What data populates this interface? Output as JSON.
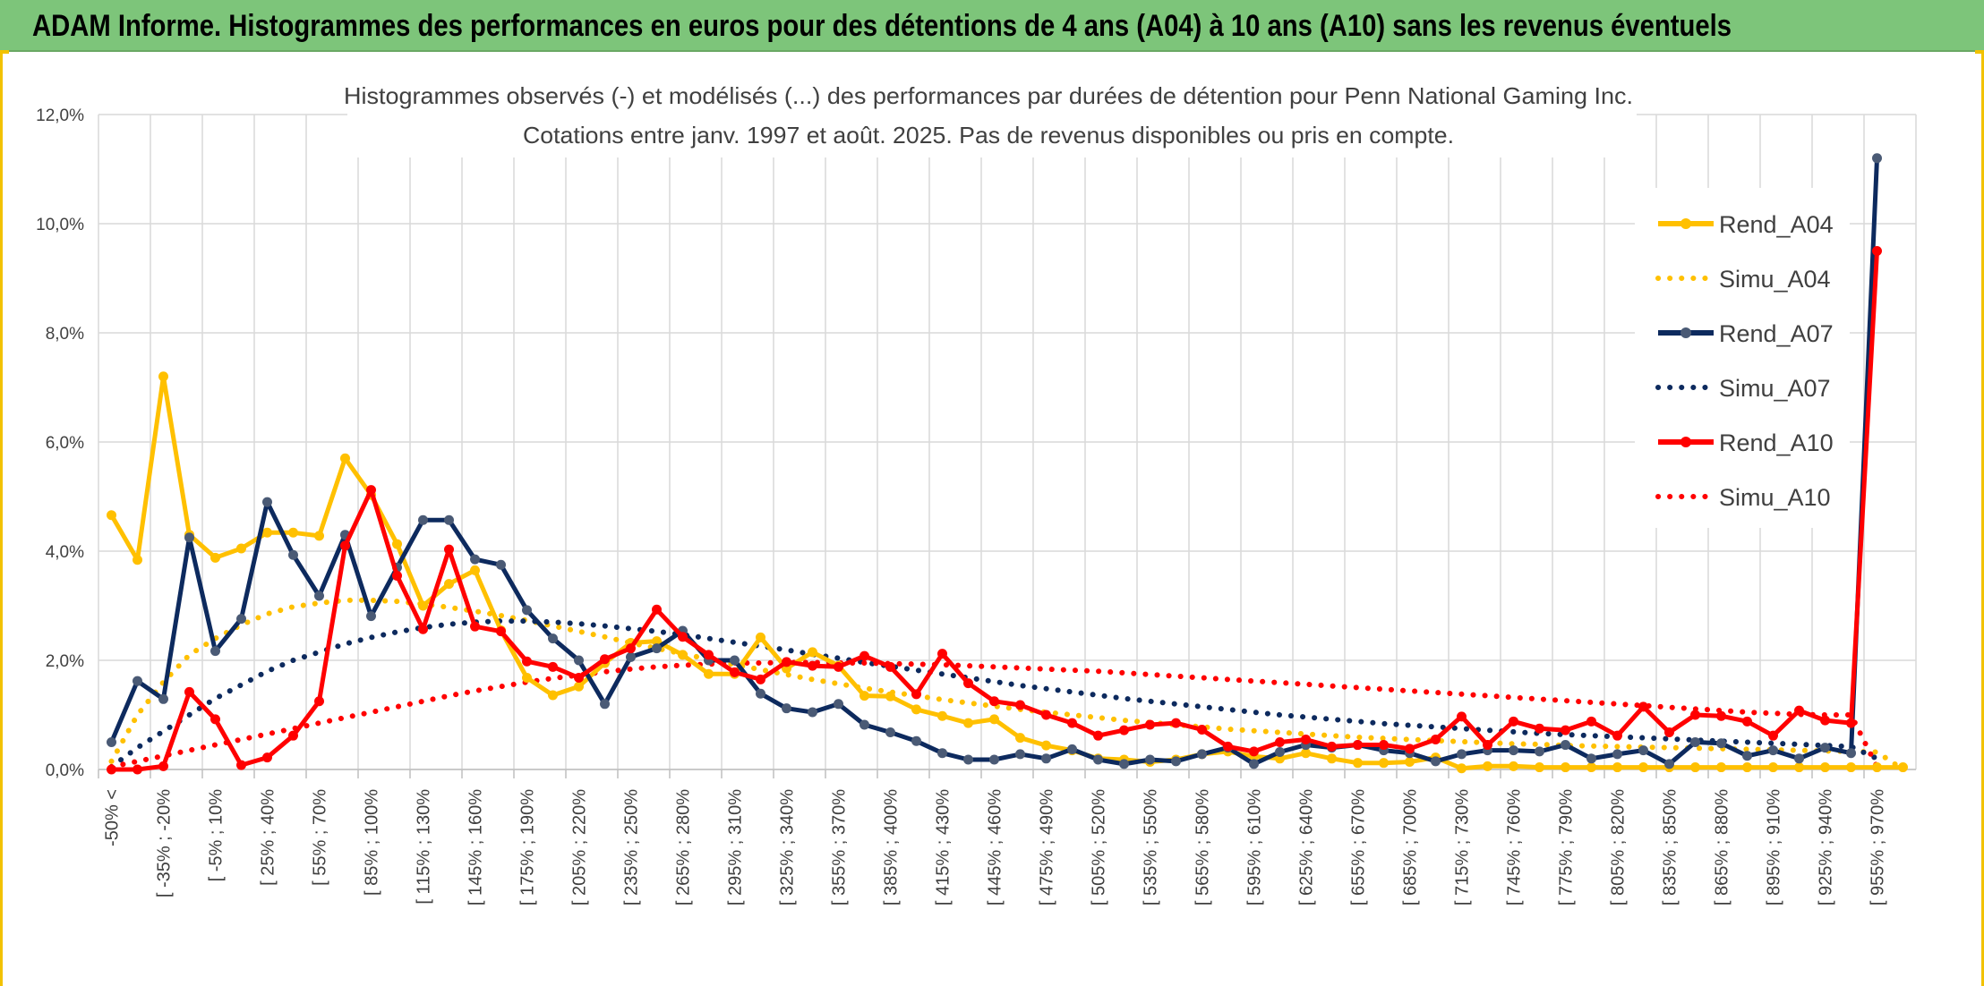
{
  "header": {
    "title": "ADAM Informe. Histogrammes des performances en euros pour des détentions de 4 ans (A04) à 10 ans (A10) sans les revenus éventuels"
  },
  "colors": {
    "header_bg": "#7dc57a",
    "accent": "#f2c200",
    "A04": "#ffc000",
    "A07": "#0d2a5e",
    "A10": "#ff0000"
  },
  "chart_data": {
    "type": "line",
    "title_line1": "Histogrammes observés (-) et modélisés (...) des performances par durées de détention pour Penn National Gaming Inc.",
    "title_line2": "Cotations entre janv. 1997 et août. 2025. Pas de revenus disponibles ou pris en compte.",
    "xlabel": "",
    "ylabel": "",
    "ylim": [
      0,
      12
    ],
    "y_ticks": [
      "0,0%",
      "2,0%",
      "4,0%",
      "6,0%",
      "8,0%",
      "10,0%",
      "12,0%"
    ],
    "grid": true,
    "legend_position": "right",
    "x_tick_labels": [
      "-50% <",
      "[ -35% ; -20%",
      "[ -5% ; 10%",
      "[ 25% ; 40%",
      "[ 55% ; 70%",
      "[ 85% ; 100%",
      "[ 115% ; 130%",
      "[ 145% ; 160%",
      "[ 175% ; 190%",
      "[ 205% ; 220%",
      "[ 235% ; 250%",
      "[ 265% ; 280%",
      "[ 295% ; 310%",
      "[ 325% ; 340%",
      "[ 355% ; 370%",
      "[ 385% ; 400%",
      "[ 415% ; 430%",
      "[ 445% ; 460%",
      "[ 475% ; 490%",
      "[ 505% ; 520%",
      "[ 535% ; 550%",
      "[ 565% ; 580%",
      "[ 595% ; 610%",
      "[ 625% ; 640%",
      "[ 655% ; 670%",
      "[ 685% ; 700%",
      "[ 715% ; 730%",
      "[ 745% ; 760%",
      "[ 775% ; 790%",
      "[ 805% ; 820%",
      "[ 835% ; 850%",
      "[ 865% ; 880%",
      "[ 895% ; 910%",
      "[ 925% ; 940%",
      "[ 955% ; 970%"
    ],
    "series": [
      {
        "name": "Rend_A04",
        "style": "solid",
        "color": "#ffc000",
        "values": [
          4.66,
          3.84,
          7.2,
          4.3,
          3.88,
          4.05,
          4.34,
          4.34,
          4.28,
          5.7,
          5.03,
          4.13,
          3.0,
          3.4,
          3.65,
          2.55,
          1.68,
          1.36,
          1.52,
          1.95,
          2.32,
          2.35,
          2.1,
          1.75,
          1.75,
          2.42,
          1.85,
          2.15,
          1.9,
          1.35,
          1.34,
          1.1,
          0.98,
          0.85,
          0.92,
          0.58,
          0.44,
          0.35,
          0.2,
          0.18,
          0.14,
          0.18,
          0.28,
          0.33,
          0.24,
          0.2,
          0.3,
          0.2,
          0.12,
          0.12,
          0.14,
          0.22,
          0.02,
          0.06,
          0.06,
          0.04,
          0.04,
          0.04,
          0.04,
          0.04,
          0.04,
          0.04,
          0.04,
          0.04,
          0.04,
          0.04,
          0.04,
          0.04,
          0.04,
          0.04
        ]
      },
      {
        "name": "Simu_A04",
        "style": "dotted",
        "color": "#ffc000",
        "values": [
          0.15,
          1.0,
          1.6,
          2.1,
          2.4,
          2.65,
          2.85,
          2.98,
          3.05,
          3.1,
          3.1,
          3.08,
          3.03,
          2.97,
          2.9,
          2.82,
          2.73,
          2.63,
          2.53,
          2.43,
          2.32,
          2.22,
          2.12,
          2.02,
          1.92,
          1.83,
          1.74,
          1.65,
          1.57,
          1.49,
          1.42,
          1.35,
          1.28,
          1.22,
          1.16,
          1.1,
          1.05,
          1.0,
          0.95,
          0.9,
          0.86,
          0.82,
          0.78,
          0.74,
          0.71,
          0.68,
          0.65,
          0.62,
          0.59,
          0.57,
          0.55,
          0.53,
          0.51,
          0.49,
          0.47,
          0.46,
          0.44,
          0.43,
          0.42,
          0.41,
          0.4,
          0.39,
          0.38,
          0.37,
          0.36,
          0.35,
          0.34,
          0.33,
          0.32,
          0.0
        ]
      },
      {
        "name": "Rend_A07",
        "style": "solid",
        "color": "#0d2a5e",
        "values": [
          0.5,
          1.62,
          1.29,
          4.25,
          2.17,
          2.76,
          4.9,
          3.93,
          3.18,
          4.3,
          2.81,
          3.7,
          4.57,
          4.57,
          3.85,
          3.75,
          2.92,
          2.4,
          2.0,
          1.2,
          2.06,
          2.22,
          2.54,
          2.0,
          2.0,
          1.39,
          1.12,
          1.05,
          1.2,
          0.82,
          0.68,
          0.52,
          0.3,
          0.18,
          0.18,
          0.28,
          0.2,
          0.37,
          0.18,
          0.1,
          0.18,
          0.15,
          0.28,
          0.4,
          0.1,
          0.32,
          0.45,
          0.4,
          0.45,
          0.35,
          0.3,
          0.15,
          0.28,
          0.35,
          0.35,
          0.33,
          0.45,
          0.2,
          0.28,
          0.35,
          0.1,
          0.5,
          0.48,
          0.25,
          0.35,
          0.2,
          0.4,
          0.3,
          11.2
        ]
      },
      {
        "name": "Simu_A07",
        "style": "dotted",
        "color": "#0d2a5e",
        "values": [
          0.05,
          0.4,
          0.7,
          1.0,
          1.3,
          1.55,
          1.8,
          2.0,
          2.15,
          2.3,
          2.42,
          2.52,
          2.6,
          2.66,
          2.7,
          2.72,
          2.72,
          2.7,
          2.67,
          2.63,
          2.58,
          2.53,
          2.47,
          2.4,
          2.33,
          2.26,
          2.19,
          2.11,
          2.04,
          1.96,
          1.89,
          1.82,
          1.75,
          1.68,
          1.61,
          1.54,
          1.48,
          1.42,
          1.36,
          1.3,
          1.25,
          1.2,
          1.15,
          1.1,
          1.05,
          1.0,
          0.96,
          0.92,
          0.88,
          0.84,
          0.81,
          0.78,
          0.75,
          0.72,
          0.69,
          0.66,
          0.64,
          0.62,
          0.6,
          0.58,
          0.56,
          0.54,
          0.52,
          0.5,
          0.48,
          0.46,
          0.44,
          0.42,
          0.2
        ]
      },
      {
        "name": "Rend_A10",
        "style": "solid",
        "color": "#ff0000",
        "values": [
          0.0,
          0.0,
          0.06,
          1.42,
          0.92,
          0.08,
          0.22,
          0.62,
          1.25,
          4.1,
          5.12,
          3.55,
          2.57,
          4.03,
          2.62,
          2.53,
          1.98,
          1.88,
          1.68,
          2.02,
          2.22,
          2.93,
          2.43,
          2.1,
          1.78,
          1.65,
          1.97,
          1.9,
          1.88,
          2.08,
          1.88,
          1.38,
          2.12,
          1.58,
          1.25,
          1.18,
          1.0,
          0.85,
          0.62,
          0.72,
          0.82,
          0.85,
          0.73,
          0.42,
          0.33,
          0.5,
          0.55,
          0.42,
          0.45,
          0.45,
          0.38,
          0.55,
          0.97,
          0.45,
          0.88,
          0.75,
          0.72,
          0.88,
          0.62,
          1.15,
          0.68,
          1.0,
          0.98,
          0.88,
          0.62,
          1.08,
          0.9,
          0.85,
          9.5
        ]
      },
      {
        "name": "Simu_A10",
        "style": "dotted",
        "color": "#ff0000",
        "values": [
          0.05,
          0.15,
          0.25,
          0.35,
          0.45,
          0.55,
          0.65,
          0.75,
          0.85,
          0.95,
          1.05,
          1.15,
          1.25,
          1.35,
          1.44,
          1.52,
          1.6,
          1.67,
          1.73,
          1.79,
          1.84,
          1.88,
          1.91,
          1.93,
          1.95,
          1.95,
          1.96,
          1.96,
          1.95,
          1.95,
          1.94,
          1.93,
          1.92,
          1.9,
          1.88,
          1.86,
          1.84,
          1.82,
          1.8,
          1.77,
          1.74,
          1.71,
          1.68,
          1.65,
          1.62,
          1.59,
          1.56,
          1.53,
          1.5,
          1.47,
          1.44,
          1.41,
          1.38,
          1.35,
          1.32,
          1.29,
          1.26,
          1.23,
          1.2,
          1.17,
          1.14,
          1.11,
          1.08,
          1.05,
          1.03,
          1.01,
          1.0,
          1.0,
          0.05
        ]
      }
    ]
  }
}
